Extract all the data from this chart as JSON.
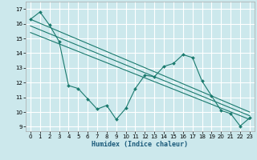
{
  "xlabel": "Humidex (Indice chaleur)",
  "bg_color": "#cce8ec",
  "grid_color": "#ffffff",
  "line_color": "#1a7a6e",
  "xlim": [
    -0.5,
    23.5
  ],
  "ylim": [
    8.7,
    17.5
  ],
  "yticks": [
    9,
    10,
    11,
    12,
    13,
    14,
    15,
    16,
    17
  ],
  "xticks": [
    0,
    1,
    2,
    3,
    4,
    5,
    6,
    7,
    8,
    9,
    10,
    11,
    12,
    13,
    14,
    15,
    16,
    17,
    18,
    19,
    20,
    21,
    22,
    23
  ],
  "zigzag_x": [
    0,
    1,
    2,
    3,
    4,
    5,
    6,
    7,
    8,
    9,
    10,
    11,
    12,
    13,
    14,
    15,
    16,
    17,
    18,
    19,
    20,
    21,
    22,
    23
  ],
  "zigzag_y": [
    16.3,
    16.8,
    15.9,
    14.8,
    11.8,
    11.6,
    10.9,
    10.2,
    10.45,
    9.5,
    10.25,
    11.6,
    12.5,
    12.4,
    13.1,
    13.3,
    13.9,
    13.7,
    12.1,
    11.1,
    10.1,
    9.9,
    9.05,
    9.6
  ],
  "line1_x": [
    0,
    23
  ],
  "line1_y": [
    16.3,
    10.0
  ],
  "line2_x": [
    0,
    23
  ],
  "line2_y": [
    15.85,
    9.75
  ],
  "line3_x": [
    0,
    23
  ],
  "line3_y": [
    15.4,
    9.5
  ]
}
